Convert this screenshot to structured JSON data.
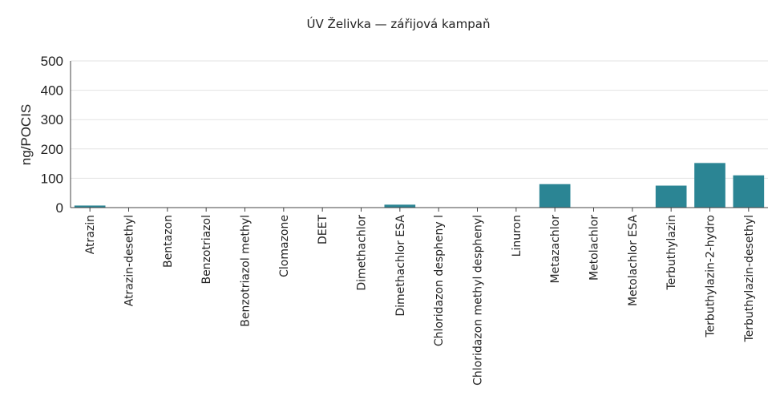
{
  "chart_data": {
    "type": "bar",
    "title": "ÚV Želivka — zářijová kampaň",
    "ylabel": "ng/POCIS",
    "xlabel": "",
    "ylim": [
      0,
      500
    ],
    "yticks": [
      0,
      100,
      200,
      300,
      400,
      500
    ],
    "grid": true,
    "bar_color": "#2b8594",
    "categories": [
      "Atrazin",
      "Atrazin-desethyl",
      "Bentazon",
      "Benzotriazol",
      "Benzotriazol methyl",
      "Clomazone",
      "DEET",
      "Dimethachlor",
      "Dimethachlor ESA",
      "Chloridazon despheny l",
      "Chloridazon methyl desphenyl",
      "Linuron",
      "Metazachlor",
      "Metolachlor",
      "Metolachlor ESA",
      "Terbuthylazin",
      "Terbuthylazin-2-hydro",
      "Terbuthylazin-desethyl"
    ],
    "values": [
      7,
      0,
      0,
      0,
      0,
      0,
      0,
      0,
      10,
      0,
      0,
      0,
      80,
      0,
      0,
      75,
      152,
      110
    ]
  }
}
